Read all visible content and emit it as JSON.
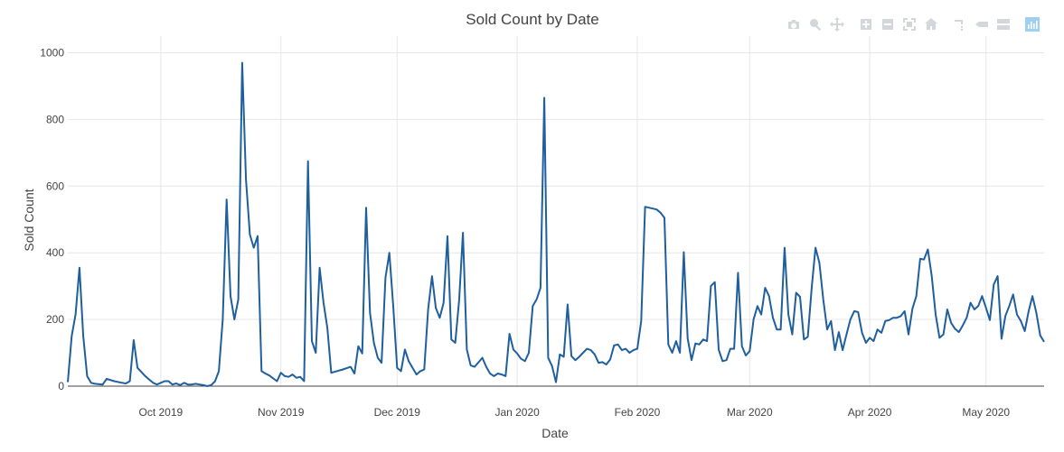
{
  "modebar": {
    "buttons": [
      "camera-icon",
      "zoom-icon",
      "pan-icon",
      "zoom-in-icon",
      "zoom-out-icon",
      "autoscale-icon",
      "reset-axes-icon",
      "spike-lines-icon",
      "hover-closest-icon",
      "hover-compare-icon",
      "plotly-logo-icon"
    ]
  },
  "chart_data": {
    "type": "line",
    "title": "Sold Count by Date",
    "xlabel": "Date",
    "ylabel": "Sold Count",
    "xlim": [
      "2019-09-07",
      "2020-05-16"
    ],
    "ylim": [
      0,
      1050
    ],
    "yticks": [
      0,
      200,
      400,
      600,
      800,
      1000
    ],
    "xticks": [
      {
        "date": "2019-10-01",
        "label": "Oct 2019"
      },
      {
        "date": "2019-11-01",
        "label": "Nov 2019"
      },
      {
        "date": "2019-12-01",
        "label": "Dec 2019"
      },
      {
        "date": "2020-01-01",
        "label": "Jan 2020"
      },
      {
        "date": "2020-02-01",
        "label": "Feb 2020"
      },
      {
        "date": "2020-03-01",
        "label": "Mar 2020"
      },
      {
        "date": "2020-04-01",
        "label": "Apr 2020"
      },
      {
        "date": "2020-05-01",
        "label": "May 2020"
      }
    ],
    "grid": true,
    "line_color": "#1f5f9e",
    "series": [
      {
        "x": [
          "2019-09-07",
          "2019-09-08",
          "2019-09-09",
          "2019-09-10",
          "2019-09-11",
          "2019-09-12",
          "2019-09-13",
          "2019-09-14",
          "2019-09-16",
          "2019-09-17",
          "2019-09-19",
          "2019-09-21",
          "2019-09-22",
          "2019-09-23",
          "2019-09-24",
          "2019-09-25",
          "2019-09-27",
          "2019-09-28",
          "2019-09-29",
          "2019-09-30",
          "2019-10-01",
          "2019-10-02",
          "2019-10-03",
          "2019-10-04",
          "2019-10-05",
          "2019-10-06",
          "2019-10-07",
          "2019-10-08",
          "2019-10-09",
          "2019-10-10",
          "2019-10-11",
          "2019-10-12",
          "2019-10-13",
          "2019-10-14",
          "2019-10-15",
          "2019-10-16",
          "2019-10-17",
          "2019-10-18",
          "2019-10-19",
          "2019-10-20",
          "2019-10-21",
          "2019-10-22",
          "2019-10-23",
          "2019-10-24",
          "2019-10-25",
          "2019-10-26",
          "2019-10-27",
          "2019-10-28",
          "2019-10-29",
          "2019-10-31",
          "2019-11-01",
          "2019-11-02",
          "2019-11-03",
          "2019-11-04",
          "2019-11-05",
          "2019-11-06",
          "2019-11-07",
          "2019-11-08",
          "2019-11-09",
          "2019-11-10",
          "2019-11-11",
          "2019-11-12",
          "2019-11-13",
          "2019-11-14",
          "2019-11-17",
          "2019-11-19",
          "2019-11-20",
          "2019-11-21",
          "2019-11-22",
          "2019-11-23",
          "2019-11-24",
          "2019-11-25",
          "2019-11-26",
          "2019-11-27",
          "2019-11-28",
          "2019-11-29",
          "2019-11-30",
          "2019-12-01",
          "2019-12-02",
          "2019-12-03",
          "2019-12-04",
          "2019-12-05",
          "2019-12-06",
          "2019-12-07",
          "2019-12-08",
          "2019-12-09",
          "2019-12-10",
          "2019-12-11",
          "2019-12-12",
          "2019-12-13",
          "2019-12-14",
          "2019-12-15",
          "2019-12-16",
          "2019-12-17",
          "2019-12-18",
          "2019-12-19",
          "2019-12-20",
          "2019-12-21",
          "2019-12-23",
          "2019-12-24",
          "2019-12-25",
          "2019-12-26",
          "2019-12-27",
          "2019-12-28",
          "2019-12-29",
          "2019-12-30",
          "2019-12-31",
          "2020-01-01",
          "2020-01-02",
          "2020-01-03",
          "2020-01-04",
          "2020-01-05",
          "2020-01-06",
          "2020-01-07",
          "2020-01-08",
          "2020-01-09",
          "2020-01-10",
          "2020-01-11",
          "2020-01-12",
          "2020-01-13",
          "2020-01-14",
          "2020-01-15",
          "2020-01-16",
          "2020-01-17",
          "2020-01-18",
          "2020-01-19",
          "2020-01-20",
          "2020-01-21",
          "2020-01-22",
          "2020-01-23",
          "2020-01-24",
          "2020-01-25",
          "2020-01-26",
          "2020-01-27",
          "2020-01-28",
          "2020-01-29",
          "2020-01-30",
          "2020-01-31",
          "2020-02-01",
          "2020-02-02",
          "2020-02-03",
          "2020-02-06",
          "2020-02-07",
          "2020-02-08",
          "2020-02-09",
          "2020-02-10",
          "2020-02-11",
          "2020-02-12",
          "2020-02-13",
          "2020-02-14",
          "2020-02-15",
          "2020-02-16",
          "2020-02-17",
          "2020-02-18",
          "2020-02-19",
          "2020-02-20",
          "2020-02-21",
          "2020-02-22",
          "2020-02-23",
          "2020-02-24",
          "2020-02-25",
          "2020-02-26",
          "2020-02-27",
          "2020-02-28",
          "2020-02-29",
          "2020-03-01",
          "2020-03-02",
          "2020-03-03",
          "2020-03-04",
          "2020-03-05",
          "2020-03-06",
          "2020-03-07",
          "2020-03-08",
          "2020-03-09",
          "2020-03-10",
          "2020-03-11",
          "2020-03-12",
          "2020-03-13",
          "2020-03-14",
          "2020-03-15",
          "2020-03-16",
          "2020-03-17",
          "2020-03-18",
          "2020-03-19",
          "2020-03-20",
          "2020-03-21",
          "2020-03-22",
          "2020-03-23",
          "2020-03-24",
          "2020-03-25",
          "2020-03-26",
          "2020-03-27",
          "2020-03-28",
          "2020-03-29",
          "2020-03-30",
          "2020-03-31",
          "2020-04-01",
          "2020-04-02",
          "2020-04-03",
          "2020-04-04",
          "2020-04-05",
          "2020-04-06",
          "2020-04-07",
          "2020-04-08",
          "2020-04-09",
          "2020-04-10",
          "2020-04-11",
          "2020-04-12",
          "2020-04-13",
          "2020-04-14",
          "2020-04-15",
          "2020-04-16",
          "2020-04-17",
          "2020-04-18",
          "2020-04-19",
          "2020-04-20",
          "2020-04-21",
          "2020-04-22",
          "2020-04-23",
          "2020-04-24",
          "2020-04-25",
          "2020-04-26",
          "2020-04-27",
          "2020-04-28",
          "2020-04-29",
          "2020-04-30",
          "2020-05-01",
          "2020-05-02",
          "2020-05-03",
          "2020-05-04",
          "2020-05-05",
          "2020-05-06",
          "2020-05-07",
          "2020-05-08",
          "2020-05-09",
          "2020-05-10",
          "2020-05-11",
          "2020-05-12",
          "2020-05-13",
          "2020-05-14",
          "2020-05-15",
          "2020-05-16"
        ],
        "y": [
          12,
          150,
          215,
          355,
          150,
          30,
          10,
          7,
          5,
          22,
          15,
          10,
          8,
          15,
          138,
          55,
          30,
          20,
          10,
          5,
          10,
          15,
          15,
          5,
          8,
          3,
          10,
          5,
          5,
          7,
          5,
          3,
          0,
          3,
          15,
          45,
          200,
          560,
          270,
          200,
          260,
          970,
          620,
          455,
          415,
          450,
          45,
          38,
          32,
          15,
          40,
          30,
          28,
          35,
          25,
          28,
          15,
          675,
          135,
          100,
          355,
          250,
          175,
          40,
          50,
          58,
          38,
          120,
          98,
          535,
          220,
          130,
          85,
          70,
          325,
          400,
          240,
          55,
          45,
          110,
          75,
          55,
          35,
          45,
          50,
          230,
          330,
          235,
          205,
          250,
          450,
          140,
          130,
          258,
          460,
          110,
          62,
          58,
          85,
          58,
          38,
          30,
          38,
          35,
          30,
          157,
          110,
          98,
          82,
          75,
          100,
          240,
          260,
          295,
          865,
          85,
          60,
          12,
          95,
          88,
          245,
          90,
          78,
          88,
          100,
          112,
          108,
          95,
          70,
          72,
          65,
          80,
          122,
          125,
          108,
          112,
          100,
          108,
          112,
          195,
          538,
          530,
          520,
          505,
          125,
          100,
          135,
          100,
          402,
          143,
          78,
          128,
          125,
          140,
          135,
          300,
          312,
          110,
          75,
          78,
          112,
          112,
          340,
          120,
          92,
          105,
          200,
          240,
          215,
          295,
          270,
          205,
          170,
          170,
          415,
          215,
          155,
          280,
          268,
          140,
          148,
          295,
          415,
          370,
          260,
          170,
          195,
          108,
          162,
          108,
          155,
          200,
          225,
          222,
          160,
          130,
          145,
          135,
          170,
          160,
          195,
          198,
          205,
          205,
          210,
          225,
          155,
          232,
          270,
          382,
          380,
          410,
          330,
          215,
          145,
          155,
          230,
          190,
          172,
          162,
          182,
          205,
          250,
          230,
          240,
          270,
          235,
          198,
          305,
          330,
          142,
          210,
          240,
          275,
          215,
          195,
          165,
          225,
          270,
          220,
          152,
          133
        ]
      }
    ]
  }
}
